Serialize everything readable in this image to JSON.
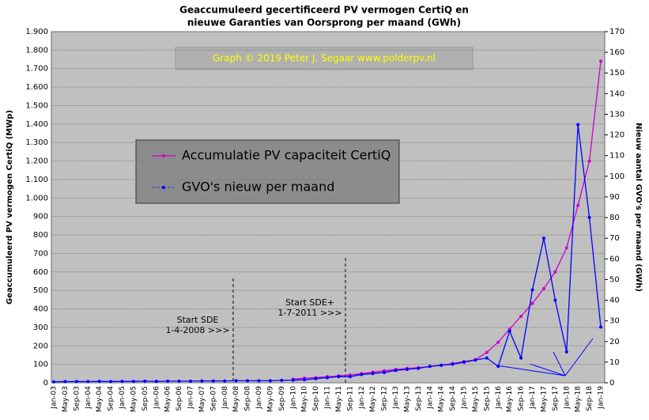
{
  "chart_data": {
    "type": "line",
    "title": "Geaccumuleerd gecertificeerd PV vermogen CertiQ en",
    "subtitle": "nieuwe Garanties van Oorsprong per maand (GWh)",
    "y_label": "Geaccumuleerd PV vermogen CertiQ (MWp)",
    "y2_label": "Nieuw aantal GVO's per maand (GWh)",
    "watermark": "Graph © 2019 Peter J. Segaar  www.polderpv.nl",
    "annotations": [
      "Start SDE",
      "1-4-2008  >>>",
      "Start SDE+",
      "1-7-2011  >>>"
    ],
    "categories": [
      "Jan-03",
      "May-03",
      "Sep-03",
      "Jan-04",
      "May-04",
      "Sep-04",
      "Jan-05",
      "May-05",
      "Sep-05",
      "Jan-06",
      "May-06",
      "Sep-06",
      "Jan-07",
      "May-07",
      "Sep-07",
      "Jan-08",
      "May-08",
      "Sep-08",
      "Jan-09",
      "May-09",
      "Sep-09",
      "Jan-10",
      "May-10",
      "Sep-10",
      "Jan-11",
      "May-11",
      "Sep-11",
      "Jan-12",
      "May-12",
      "Sep-12",
      "Jan-13",
      "May-13",
      "Sep-13",
      "Jan-14",
      "May-14",
      "Sep-14",
      "Jan-15",
      "May-15",
      "Sep-15",
      "Jan-16",
      "May-16",
      "Sep-16",
      "Jan-17",
      "May-17",
      "Sep-17",
      "Jan-18",
      "May-18",
      "Sep-18",
      "Jan-19"
    ],
    "series": [
      {
        "name": "Accumulatie PV capaciteit CertiQ",
        "color": "#cc00cc",
        "axis": "y",
        "values": [
          null,
          null,
          null,
          null,
          null,
          null,
          null,
          null,
          null,
          null,
          null,
          null,
          null,
          null,
          null,
          null,
          null,
          null,
          null,
          null,
          null,
          20,
          25,
          28,
          33,
          38,
          42,
          50,
          58,
          65,
          72,
          78,
          82,
          88,
          95,
          105,
          115,
          125,
          165,
          220,
          290,
          360,
          430,
          510,
          600,
          730,
          960,
          1200,
          1740
        ]
      },
      {
        "name": "GVO's nieuw per maand",
        "color": "#0000ff",
        "axis": "y2",
        "values": [
          0.5,
          0.6,
          0.6,
          0.6,
          0.7,
          0.6,
          0.7,
          0.7,
          0.8,
          0.7,
          0.8,
          0.8,
          0.8,
          0.9,
          0.9,
          0.9,
          1,
          1,
          1,
          1,
          1.2,
          1.3,
          1.5,
          2,
          2.5,
          3,
          3,
          4,
          4.5,
          5,
          6,
          6.5,
          7,
          8,
          8.5,
          9,
          10,
          11,
          12,
          8,
          25,
          12,
          45,
          70,
          40,
          15,
          125,
          80,
          27
        ]
      }
    ],
    "ylim": [
      0,
      1900
    ],
    "yticks": [
      0,
      100,
      200,
      300,
      400,
      500,
      600,
      700,
      800,
      900,
      {
        "value": 1000,
        "label": "1.000"
      },
      {
        "value": 1100,
        "label": "1.100"
      },
      {
        "value": 1200,
        "label": "1.200"
      },
      {
        "value": 1300,
        "label": "1.300"
      },
      {
        "value": 1400,
        "label": "1.400"
      },
      {
        "value": 1500,
        "label": "1.500"
      },
      {
        "value": 1600,
        "label": "1.600"
      },
      {
        "value": 1700,
        "label": "1.700"
      },
      {
        "value": 1800,
        "label": "1.800"
      },
      {
        "value": 1900,
        "label": "1.900"
      }
    ],
    "y2lim": [
      0,
      170
    ],
    "y2ticks": [
      0,
      10,
      20,
      30,
      40,
      50,
      60,
      70,
      80,
      90,
      100,
      110,
      120,
      130,
      140,
      150,
      160,
      170
    ],
    "grid": true
  }
}
